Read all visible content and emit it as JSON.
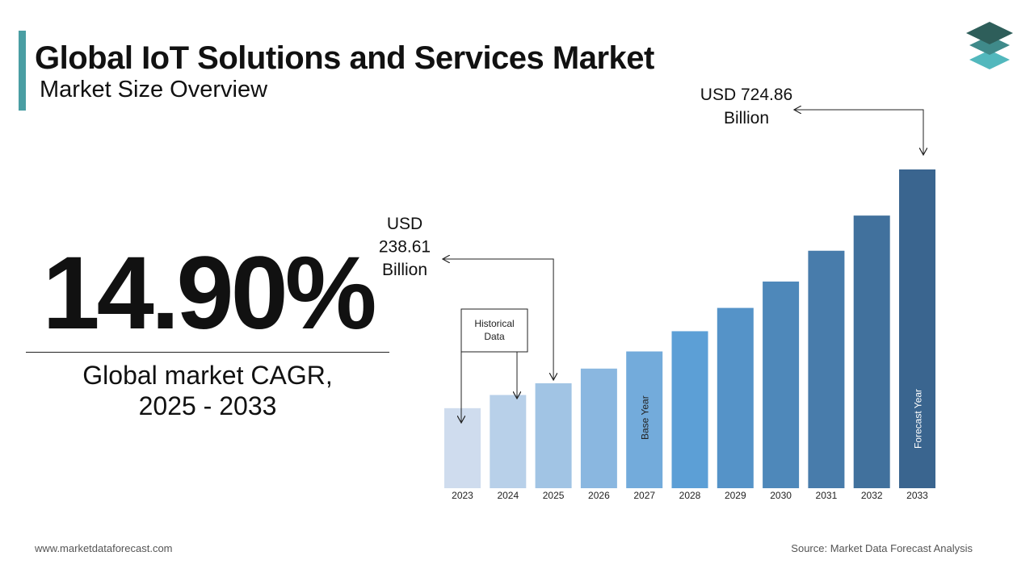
{
  "header": {
    "title": "Global IoT Solutions and Services Market",
    "subtitle": "Market Size Overview"
  },
  "cagr": {
    "value": "14.90%",
    "label_line1": "Global market CAGR,",
    "label_line2": "2025 - 2033"
  },
  "colors": {
    "accent": "#4a9ea3",
    "bar_start": "#cfdcee",
    "bar_mid": "#5c9fd6",
    "bar_end": "#3a658f"
  },
  "chart_data": {
    "type": "bar",
    "categories": [
      "2023",
      "2024",
      "2025",
      "2026",
      "2027",
      "2028",
      "2029",
      "2030",
      "2031",
      "2032",
      "2033"
    ],
    "values": [
      182,
      212,
      238.61,
      272,
      311,
      357,
      410,
      470,
      540,
      620,
      724.86
    ],
    "ylim": [
      0,
      800
    ],
    "annotations": {
      "historical": "Historical Data",
      "base_year": "Base Year",
      "forecast_year": "Forecast Year",
      "value_2025": [
        "USD",
        "238.61",
        "Billion"
      ],
      "value_2033": [
        "USD 724.86",
        "Billion"
      ]
    }
  },
  "footer": {
    "website": "www.marketdataforecast.com",
    "source": "Source: Market Data Forecast Analysis"
  }
}
